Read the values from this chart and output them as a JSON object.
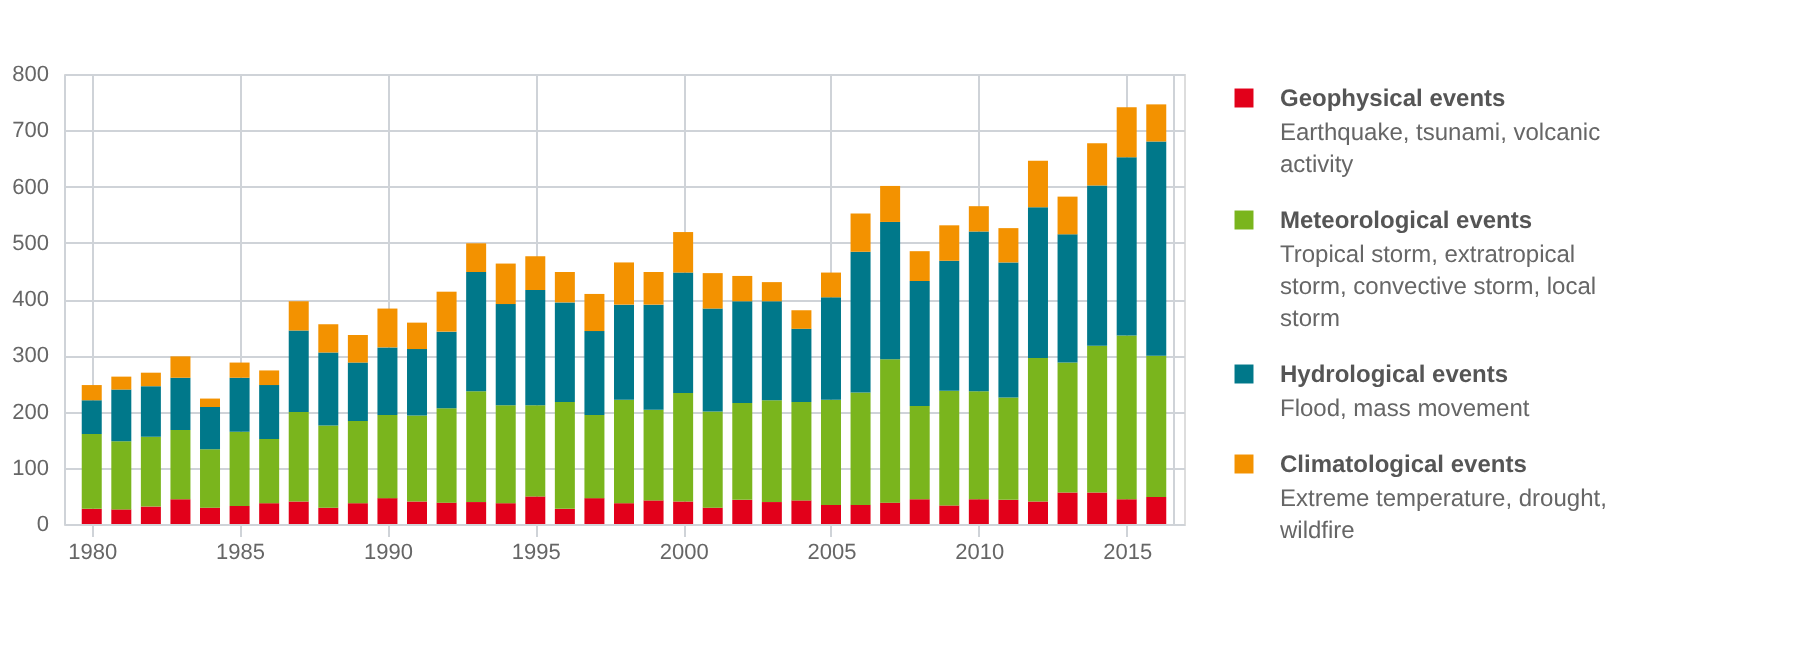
{
  "chart_data": {
    "type": "bar",
    "stacked": true,
    "x": [
      1980,
      1981,
      1982,
      1983,
      1984,
      1985,
      1986,
      1987,
      1988,
      1989,
      1990,
      1991,
      1992,
      1993,
      1994,
      1995,
      1996,
      1997,
      1998,
      1999,
      2000,
      2001,
      2002,
      2003,
      2004,
      2005,
      2006,
      2007,
      2008,
      2009,
      2010,
      2011,
      2012,
      2013,
      2014,
      2015,
      2016
    ],
    "series": [
      {
        "name": "Geophysical events",
        "color": "#e2001a",
        "values": [
          27,
          26,
          31,
          44,
          29,
          32,
          37,
          40,
          29,
          37,
          46,
          40,
          38,
          39,
          37,
          49,
          27,
          46,
          37,
          42,
          40,
          29,
          43,
          39,
          42,
          34,
          34,
          38,
          44,
          33,
          44,
          43,
          40,
          56,
          56,
          44,
          48
        ]
      },
      {
        "name": "Meteorological events",
        "color": "#7ab51d",
        "values": [
          133,
          121,
          124,
          123,
          104,
          132,
          114,
          159,
          146,
          146,
          148,
          153,
          168,
          197,
          174,
          162,
          190,
          148,
          184,
          161,
          193,
          171,
          172,
          181,
          175,
          187,
          200,
          255,
          166,
          204,
          192,
          182,
          255,
          231,
          261,
          291,
          251
        ]
      },
      {
        "name": "Hydrological events",
        "color": "#00788a",
        "values": [
          60,
          92,
          90,
          93,
          75,
          96,
          96,
          145,
          130,
          104,
          120,
          118,
          136,
          212,
          180,
          205,
          177,
          149,
          169,
          187,
          214,
          183,
          181,
          176,
          130,
          182,
          250,
          244,
          222,
          231,
          284,
          240,
          268,
          228,
          285,
          317,
          381
        ]
      },
      {
        "name": "Climatological events",
        "color": "#f39200",
        "values": [
          27,
          23,
          24,
          38,
          15,
          27,
          26,
          52,
          50,
          49,
          69,
          47,
          71,
          51,
          72,
          60,
          54,
          66,
          75,
          58,
          72,
          63,
          45,
          34,
          33,
          44,
          68,
          64,
          53,
          63,
          45,
          61,
          83,
          67,
          75,
          89,
          66
        ]
      }
    ],
    "annotations": [
      "Earthquake, tsunami, volcanic activity",
      "Tropical storm, extratropical storm, convective storm, local storm",
      "Flood, mass movement",
      "Extreme temperature, drought, wildfire"
    ],
    "xlim": [
      1979.4,
      2016.6
    ],
    "xticks": [
      1980,
      1985,
      1990,
      1995,
      2000,
      2005,
      2010,
      2015
    ],
    "ylim": [
      0,
      800
    ],
    "yticks": [
      0,
      100,
      200,
      300,
      400,
      500,
      600,
      700,
      800
    ],
    "grid": true,
    "legend": "right"
  }
}
